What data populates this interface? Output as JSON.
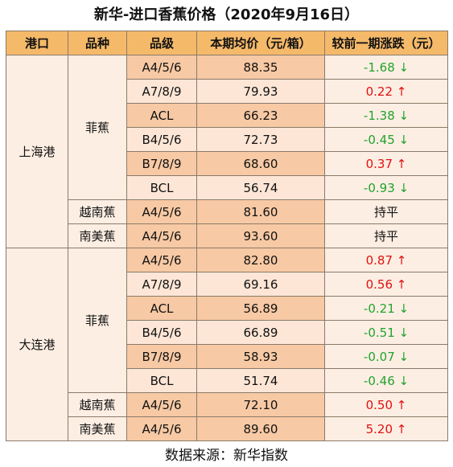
{
  "title": "新华-进口香蕉价格（2020年9月16日）",
  "headers": [
    "港口",
    "品种",
    "品级",
    "本期均价（元/箱）",
    "较前一期涨跌（元）"
  ],
  "ports": [
    {
      "name": "上海港",
      "groups": [
        {
          "variety": "菲蕉",
          "rows": [
            {
              "grade": "A4/5/6",
              "price": "88.35",
              "change": "-1.68 ↓",
              "dir": "down"
            },
            {
              "grade": "A7/8/9",
              "price": "79.93",
              "change": "0.22 ↑",
              "dir": "up"
            },
            {
              "grade": "ACL",
              "price": "66.23",
              "change": "-1.38 ↓",
              "dir": "down"
            },
            {
              "grade": "B4/5/6",
              "price": "72.73",
              "change": "-0.45 ↓",
              "dir": "down"
            },
            {
              "grade": "B7/8/9",
              "price": "68.60",
              "change": "0.37 ↑",
              "dir": "up"
            },
            {
              "grade": "BCL",
              "price": "56.74",
              "change": "-0.93 ↓",
              "dir": "down"
            }
          ]
        },
        {
          "variety": "越南蕉",
          "rows": [
            {
              "grade": "A4/5/6",
              "price": "81.60",
              "change": "持平",
              "dir": "flat"
            }
          ]
        },
        {
          "variety": "南美蕉",
          "rows": [
            {
              "grade": "A4/5/6",
              "price": "93.60",
              "change": "持平",
              "dir": "flat"
            }
          ]
        }
      ]
    },
    {
      "name": "大连港",
      "groups": [
        {
          "variety": "菲蕉",
          "rows": [
            {
              "grade": "A4/5/6",
              "price": "82.80",
              "change": "0.87 ↑",
              "dir": "up"
            },
            {
              "grade": "A7/8/9",
              "price": "69.16",
              "change": "0.56 ↑",
              "dir": "up"
            },
            {
              "grade": "ACL",
              "price": "56.89",
              "change": "-0.21 ↓",
              "dir": "down"
            },
            {
              "grade": "B4/5/6",
              "price": "66.89",
              "change": "-0.51 ↓",
              "dir": "down"
            },
            {
              "grade": "B7/8/9",
              "price": "58.93",
              "change": "-0.07 ↓",
              "dir": "down"
            },
            {
              "grade": "BCL",
              "price": "51.74",
              "change": "-0.46 ↓",
              "dir": "down"
            }
          ]
        },
        {
          "variety": "越南蕉",
          "rows": [
            {
              "grade": "A4/5/6",
              "price": "72.10",
              "change": "0.50 ↑",
              "dir": "up"
            }
          ]
        },
        {
          "variety": "南美蕉",
          "rows": [
            {
              "grade": "A4/5/6",
              "price": "89.60",
              "change": "5.20 ↑",
              "dir": "up"
            }
          ]
        }
      ]
    }
  ],
  "source": "数据来源：新华指数",
  "colors": {
    "header_bg": "#f5b96a",
    "dark_cell_bg": "#f7c9a4",
    "light_cell_bg": "#fde6d6",
    "up": "#e01111",
    "down": "#21a32e"
  }
}
